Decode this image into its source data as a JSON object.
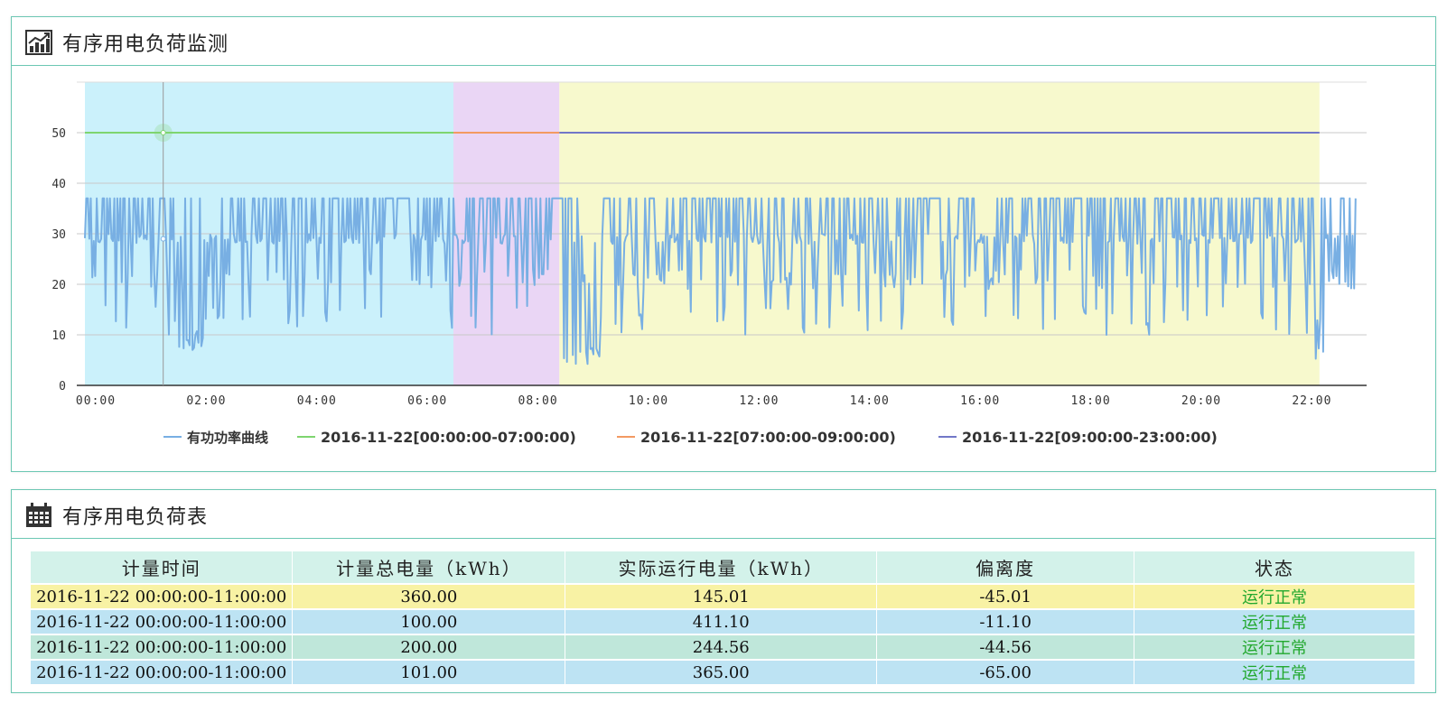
{
  "chart_panel": {
    "title": "有序用电负荷监测",
    "icon": "line-chart-icon"
  },
  "table_panel": {
    "title": "有序用电负荷表",
    "icon": "calendar-grid-icon"
  },
  "chart_data": {
    "type": "line",
    "title": "",
    "xlabel": "",
    "ylabel": "",
    "ylim": [
      0,
      60
    ],
    "xlim": [
      "00:00",
      "23:00"
    ],
    "y_ticks": [
      0,
      10,
      20,
      30,
      40,
      50
    ],
    "x_ticks": [
      "00:00",
      "02:00",
      "04:00",
      "06:00",
      "08:00",
      "10:00",
      "12:00",
      "14:00",
      "16:00",
      "18:00",
      "20:00",
      "22:00"
    ],
    "grid": true,
    "legend_position": "bottom",
    "bands": [
      {
        "from": "00:00",
        "to": "06:40",
        "color": "#cbf1fb"
      },
      {
        "from": "06:40",
        "to": "08:35",
        "color": "#ead6f5"
      },
      {
        "from": "08:35",
        "to": "22:20",
        "color": "#f7f9cd"
      }
    ],
    "series": [
      {
        "name": "有功功率曲线",
        "color": "#78afe3",
        "kind": "power",
        "x_range": [
          "00:00",
          "23:00"
        ],
        "levels": [
          37,
          29,
          21,
          13
        ],
        "dips": [
          {
            "from": "01:40",
            "to": "02:10",
            "low": 7
          },
          {
            "from": "08:40",
            "to": "09:20",
            "low": 4
          },
          {
            "from": "22:15",
            "to": "22:25",
            "low": 5
          }
        ]
      },
      {
        "name": "2016-11-22[00:00:00-07:00:00)",
        "color": "#7ed56f",
        "kind": "limit",
        "x": [
          "00:00",
          "06:40"
        ],
        "y": 50
      },
      {
        "name": "2016-11-22[07:00:00-09:00:00)",
        "color": "#f39a62",
        "kind": "limit",
        "x": [
          "06:40",
          "08:35"
        ],
        "y": 50
      },
      {
        "name": "2016-11-22[09:00:00-23:00:00)",
        "color": "#7177c8",
        "kind": "limit",
        "x": [
          "08:35",
          "22:20"
        ],
        "y": 50
      }
    ]
  },
  "table": {
    "headers": [
      "计量时间",
      "计量总电量（kWh）",
      "实际运行电量（kWh）",
      "偏离度",
      "状态"
    ],
    "rows": [
      [
        "2016-11-22 00:00:00-11:00:00",
        "360.00",
        "145.01",
        "-45.01",
        "运行正常"
      ],
      [
        "2016-11-22 00:00:00-11:00:00",
        "100.00",
        "411.10",
        "-11.10",
        "运行正常"
      ],
      [
        "2016-11-22 00:00:00-11:00:00",
        "200.00",
        "244.56",
        "-44.56",
        "运行正常"
      ],
      [
        "2016-11-22 00:00:00-11:00:00",
        "101.00",
        "365.00",
        "-65.00",
        "运行正常"
      ]
    ]
  }
}
